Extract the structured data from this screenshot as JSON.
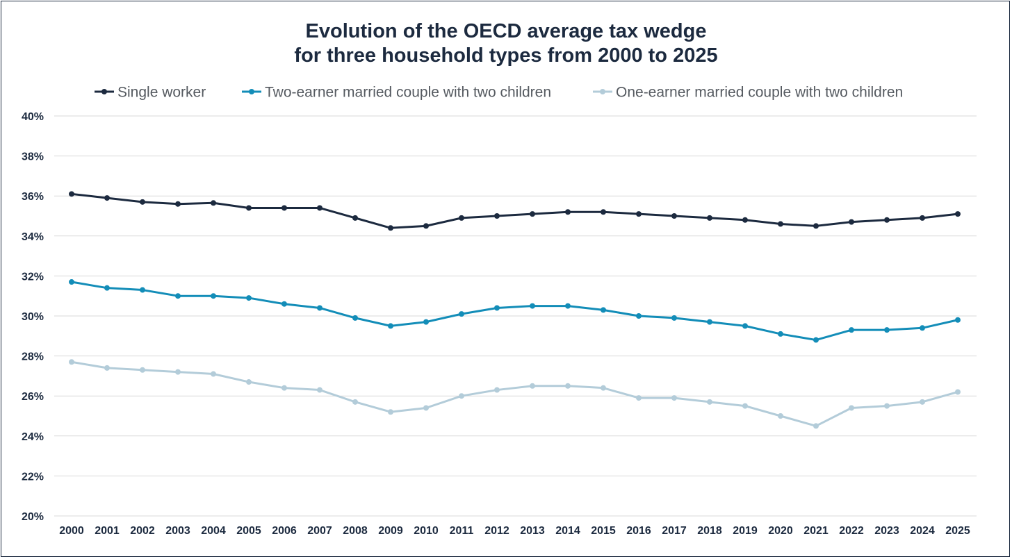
{
  "chart_data": {
    "type": "line",
    "title_line1": "Evolution of the OECD average tax wedge",
    "title_line2": "for three household types from 2000 to 2025",
    "x": [
      "2000",
      "2001",
      "2002",
      "2003",
      "2004",
      "2005",
      "2006",
      "2007",
      "2008",
      "2009",
      "2010",
      "2011",
      "2012",
      "2013",
      "2014",
      "2015",
      "2016",
      "2017",
      "2018",
      "2019",
      "2020",
      "2021",
      "2022",
      "2023",
      "2024",
      "2025"
    ],
    "y_ticks": [
      "20%",
      "22%",
      "24%",
      "26%",
      "28%",
      "30%",
      "32%",
      "34%",
      "36%",
      "38%",
      "40%"
    ],
    "ylim": [
      20,
      40
    ],
    "grid": true,
    "legend_position": "top",
    "series": [
      {
        "name": "Single worker",
        "color": "#1c2a3f",
        "values": [
          36.1,
          35.9,
          35.7,
          35.6,
          35.65,
          35.4,
          35.4,
          35.4,
          34.9,
          34.4,
          34.5,
          34.9,
          35.0,
          35.1,
          35.2,
          35.2,
          35.1,
          35.0,
          34.9,
          34.8,
          34.6,
          34.5,
          34.7,
          34.8,
          34.9,
          35.1
        ]
      },
      {
        "name": "Two-earner married couple with two children",
        "color": "#138db8",
        "values": [
          31.7,
          31.4,
          31.3,
          31.0,
          31.0,
          30.9,
          30.6,
          30.4,
          29.9,
          29.5,
          29.7,
          30.1,
          30.4,
          30.5,
          30.5,
          30.3,
          30.0,
          29.9,
          29.7,
          29.5,
          29.1,
          28.8,
          29.3,
          29.3,
          29.4,
          29.8
        ]
      },
      {
        "name": "One-earner married couple with two children",
        "color": "#b3ccd9",
        "values": [
          27.7,
          27.4,
          27.3,
          27.2,
          27.1,
          26.7,
          26.4,
          26.3,
          25.7,
          25.2,
          25.4,
          26.0,
          26.3,
          26.5,
          26.5,
          26.4,
          25.9,
          25.9,
          25.7,
          25.5,
          25.0,
          24.5,
          25.4,
          25.5,
          25.7,
          26.2
        ]
      }
    ]
  }
}
